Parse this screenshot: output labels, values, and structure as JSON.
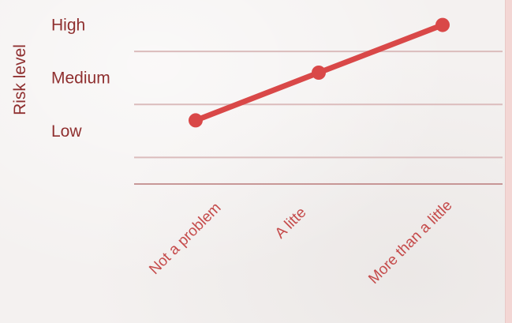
{
  "chart_data": {
    "type": "line",
    "title": "",
    "xlabel": "",
    "ylabel": "Risk level",
    "categories": [
      "Not a problem",
      "A litte",
      "More than a little"
    ],
    "y_levels": [
      "Low",
      "Medium",
      "High"
    ],
    "series": [
      {
        "values": [
          1.2,
          2.1,
          3.0
        ]
      }
    ],
    "ylim": [
      0,
      3.5
    ],
    "grid": true,
    "colors": {
      "line": "#d94848",
      "grid": "#dbbcbc",
      "axis": "#b97a7a",
      "text": "#8f2f2f",
      "xtext": "#c54b4b"
    }
  }
}
